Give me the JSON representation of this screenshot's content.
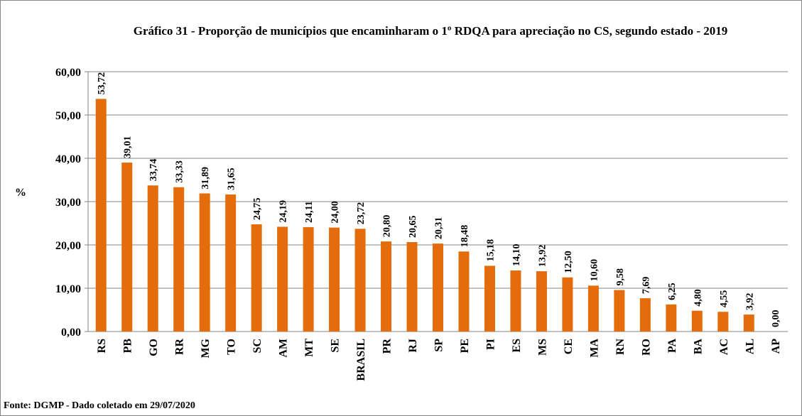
{
  "chart_data": {
    "type": "bar",
    "title": "Gráfico 31 - Proporção de municípios que encaminharam o 1º RDQA para apreciação no CS,  segundo estado - 2019",
    "y_label": "%",
    "source": "Fonte: DGMP - Dado coletado em 29/07/2020",
    "categories": [
      "RS",
      "PB",
      "GO",
      "RR",
      "MG",
      "TO",
      "SC",
      "AM",
      "MT",
      "SE",
      "BRASIL",
      "PR",
      "RJ",
      "SP",
      "PE",
      "PI",
      "ES",
      "MS",
      "CE",
      "MA",
      "RN",
      "RO",
      "PA",
      "BA",
      "AC",
      "AL",
      "AP"
    ],
    "values": [
      53.72,
      39.01,
      33.74,
      33.33,
      31.89,
      31.65,
      24.75,
      24.19,
      24.11,
      24.0,
      23.72,
      20.8,
      20.65,
      20.31,
      18.48,
      15.18,
      14.1,
      13.92,
      12.5,
      10.6,
      9.58,
      7.69,
      6.25,
      4.8,
      4.55,
      3.92,
      0.0
    ],
    "value_labels": [
      "53,72",
      "39,01",
      "33,74",
      "33,33",
      "31,89",
      "31,65",
      "24,75",
      "24,19",
      "24,11",
      "24,00",
      "23,72",
      "20,80",
      "20,65",
      "20,31",
      "18,48",
      "15,18",
      "14,10",
      "13,92",
      "12,50",
      "10,60",
      "9,58",
      "7,69",
      "6,25",
      "4,80",
      "4,55",
      "3,92",
      "0,00"
    ],
    "color": "#e46c0a",
    "ylim": [
      0,
      60
    ],
    "yticks": [
      {
        "value": 0,
        "label": "0,00"
      },
      {
        "value": 10,
        "label": "10,00"
      },
      {
        "value": 20,
        "label": "20,00"
      },
      {
        "value": 30,
        "label": "30,00"
      },
      {
        "value": 40,
        "label": "40,00"
      },
      {
        "value": 50,
        "label": "50,00"
      },
      {
        "value": 60,
        "label": "60,00"
      }
    ],
    "grid": true
  }
}
